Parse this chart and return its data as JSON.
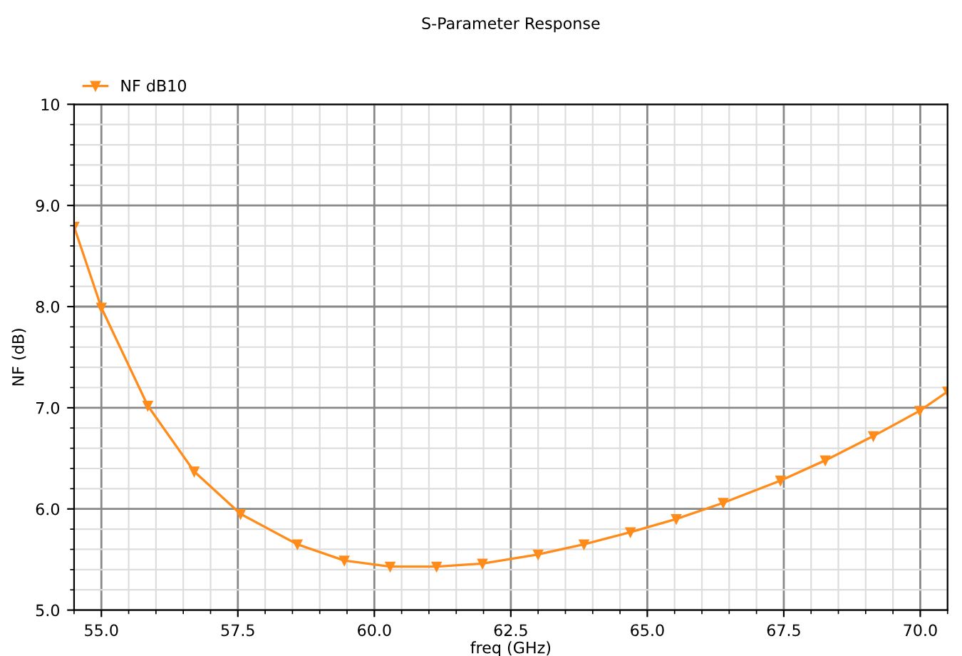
{
  "chart_data": {
    "type": "line",
    "title": "S-Parameter Response",
    "xlabel": "freq (GHz)",
    "ylabel": "NF (dB)",
    "xlim": [
      54.5,
      70.5
    ],
    "ylim": [
      5.0,
      10.0
    ],
    "xticks": [
      {
        "value": 55,
        "label": "55.0"
      },
      {
        "value": 57.5,
        "label": "57.5"
      },
      {
        "value": 60,
        "label": "60.0"
      },
      {
        "value": 62.5,
        "label": "62.5"
      },
      {
        "value": 65,
        "label": "65.0"
      },
      {
        "value": 67.5,
        "label": "67.5"
      },
      {
        "value": 70,
        "label": "70.0"
      }
    ],
    "yticks": [
      {
        "value": 5,
        "label": "5.0"
      },
      {
        "value": 6,
        "label": "6.0"
      },
      {
        "value": 7,
        "label": "7.0"
      },
      {
        "value": 8,
        "label": "8.0"
      },
      {
        "value": 9,
        "label": "9.0"
      },
      10
    ],
    "grid": true,
    "legend": "top left",
    "marker": "triangle",
    "line_style": "solid",
    "series": [
      {
        "name": "NF dB10",
        "color": "#ff8c1a",
        "x": [
          54.5,
          55.0,
          55.85,
          56.7,
          57.55,
          58.59,
          59.45,
          60.29,
          61.14,
          61.98,
          63.0,
          63.84,
          64.69,
          65.53,
          66.39,
          67.44,
          68.26,
          69.14,
          69.99,
          70.5
        ],
        "values": [
          8.79,
          7.99,
          7.02,
          6.37,
          5.95,
          5.65,
          5.49,
          5.43,
          5.43,
          5.46,
          5.55,
          5.65,
          5.77,
          5.9,
          6.06,
          6.28,
          6.48,
          6.72,
          6.97,
          7.16
        ]
      }
    ]
  }
}
